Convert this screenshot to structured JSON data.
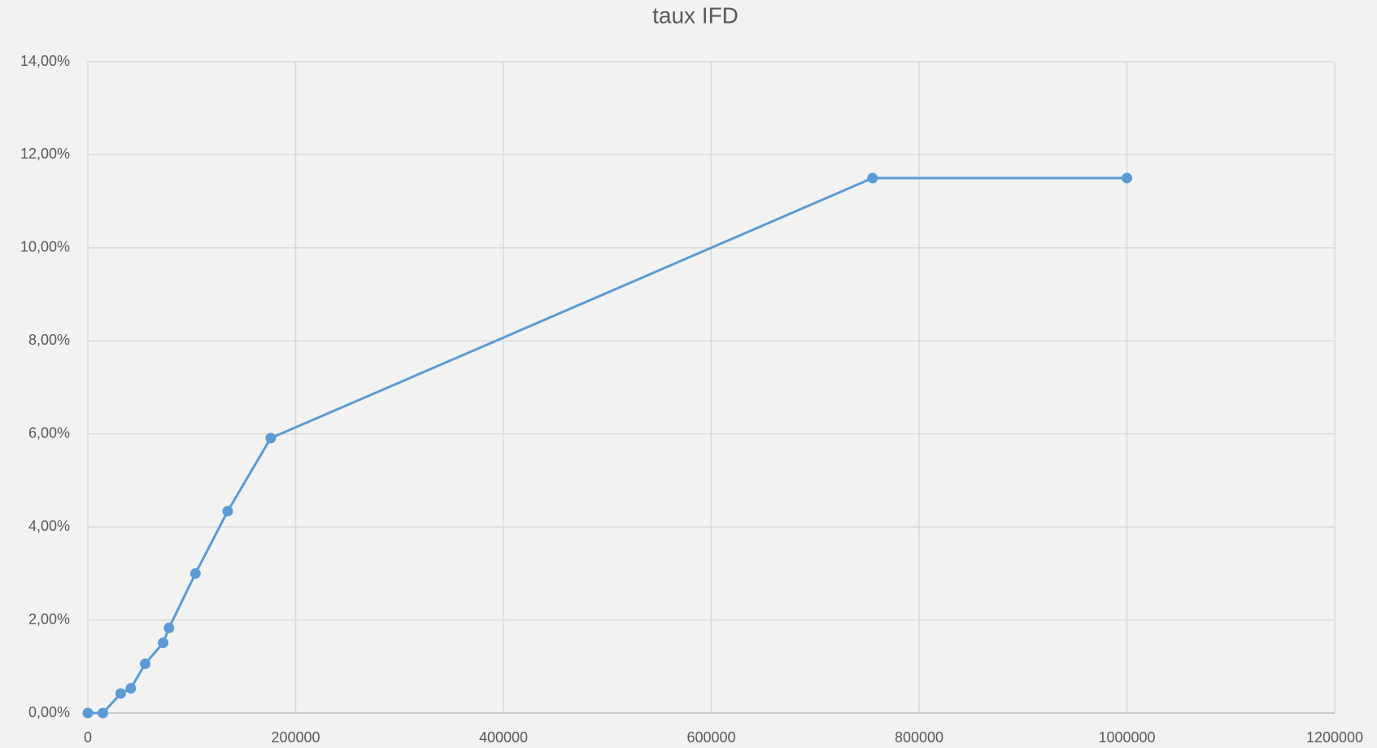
{
  "chart_data": {
    "type": "line",
    "title": "taux IFD",
    "x": [
      0,
      14500,
      31600,
      41400,
      55200,
      72500,
      78100,
      103600,
      134600,
      176000,
      755200,
      1000000
    ],
    "series": [
      {
        "name": "taux IFD",
        "color": "#5b9bd5",
        "values": [
          0,
          0,
          0.42,
          0.53,
          1.06,
          1.51,
          1.83,
          3.0,
          4.34,
          5.91,
          11.5,
          11.5
        ]
      }
    ],
    "xlim": [
      0,
      1200000
    ],
    "xticks": [
      0,
      200000,
      400000,
      600000,
      800000,
      1000000,
      1200000
    ],
    "ylim": [
      0,
      14
    ],
    "yticks": [
      {
        "value": 0,
        "label": "0,00%"
      },
      {
        "value": 2,
        "label": "2,00%"
      },
      {
        "value": 4,
        "label": "4,00%"
      },
      {
        "value": 6,
        "label": "6,00%"
      },
      {
        "value": 8,
        "label": "8,00%"
      },
      {
        "value": 10,
        "label": "10,00%"
      },
      {
        "value": 12,
        "label": "12,00%"
      },
      {
        "value": 14,
        "label": "14,00%"
      }
    ],
    "grid": true
  }
}
